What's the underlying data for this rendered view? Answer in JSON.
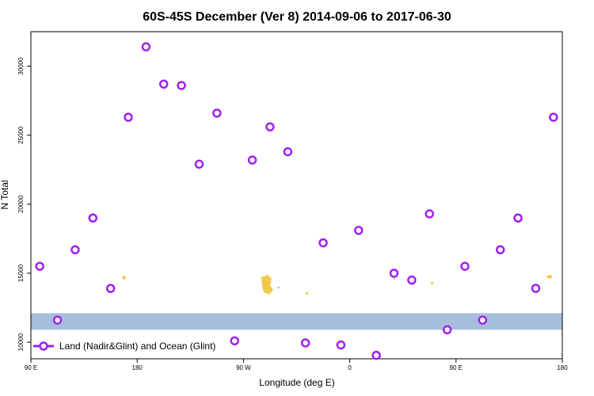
{
  "chart_data": {
    "type": "scatter",
    "title": "60S-45S December (Ver 8)   2014-09-06 to 2017-06-30",
    "xlabel": "Longitude (deg E)",
    "ylabel": "N Total",
    "xlim": [
      90,
      540
    ],
    "ylim": [
      8800,
      32500
    ],
    "x_ticks": [
      {
        "value": 90,
        "label": "90 E"
      },
      {
        "value": 180,
        "label": "180"
      },
      {
        "value": 270,
        "label": "90 W"
      },
      {
        "value": 360,
        "label": "0"
      },
      {
        "value": 450,
        "label": "90 E"
      },
      {
        "value": 540,
        "label": "180"
      }
    ],
    "y_ticks": [
      {
        "value": 10000,
        "label": "10000"
      },
      {
        "value": 15000,
        "label": "15000"
      },
      {
        "value": 20000,
        "label": "20000"
      },
      {
        "value": 25000,
        "label": "25000"
      },
      {
        "value": 30000,
        "label": "30000"
      }
    ],
    "series": [
      {
        "name": "Land (Nadir&Glint) and Ocean (Glint)",
        "color": "#a020f0",
        "marker": "open-circle",
        "x": [
          97.5,
          112.5,
          127.5,
          142.5,
          157.5,
          172.5,
          187.5,
          202.5,
          217.5,
          232.5,
          247.5,
          262.5,
          277.5,
          292.5,
          307.5,
          322.5,
          337.5,
          352.5,
          367.5,
          382.5,
          397.5,
          412.5,
          427.5,
          442.5,
          457.5,
          472.5,
          487.5,
          502.5,
          517.5,
          532.5
        ],
        "y": [
          15500,
          11600,
          16700,
          19000,
          13900,
          26300,
          31400,
          28700,
          28600,
          22900,
          26600,
          10100,
          23200,
          25600,
          23800,
          9950,
          17200,
          9800,
          18100,
          9050,
          15000,
          14500,
          19300,
          10900,
          15500,
          11600,
          16700,
          19000,
          13900,
          26300
        ]
      }
    ],
    "band": {
      "y_from": 10900,
      "y_to": 12100,
      "color": "#a6bddb",
      "land_color": "#f2c94c"
    },
    "grid": false,
    "legend_position": "bottom-left"
  }
}
